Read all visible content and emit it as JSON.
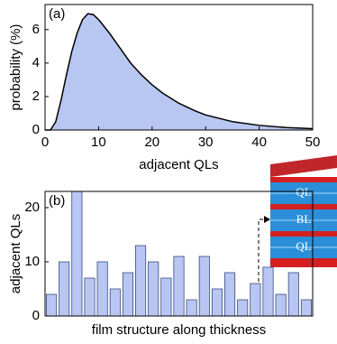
{
  "chart_data": [
    {
      "type": "area",
      "panel_label": "(a)",
      "x_label": "adjacent QLs",
      "y_label": "probability (%)",
      "x": [
        0,
        1,
        2,
        3,
        4,
        5,
        6,
        7,
        8,
        9,
        10,
        12,
        14,
        16,
        18,
        20,
        22,
        25,
        28,
        30,
        35,
        40,
        45,
        50
      ],
      "values": [
        0,
        0,
        0.5,
        1.8,
        3.3,
        4.7,
        5.8,
        6.6,
        6.95,
        6.9,
        6.6,
        5.8,
        4.9,
        4.0,
        3.3,
        2.7,
        2.2,
        1.6,
        1.15,
        0.9,
        0.5,
        0.28,
        0.15,
        0.08
      ],
      "color": "#b8c6f2",
      "xlim": [
        0,
        50
      ],
      "ylim": [
        0,
        7.5
      ],
      "xticks": [
        0,
        10,
        20,
        30,
        40,
        50
      ],
      "yticks": [
        0,
        2,
        4,
        6
      ]
    },
    {
      "type": "bar",
      "panel_label": "(b)",
      "x_label": "film structure along thickness",
      "y_label": "adjacent QLs",
      "categories": [
        null,
        null,
        null,
        null,
        null,
        null,
        null,
        null,
        null,
        null,
        null,
        null,
        null,
        null,
        null,
        null,
        null,
        null,
        null,
        null,
        null
      ],
      "values": [
        4,
        10,
        23,
        7,
        10,
        5,
        8,
        13,
        10,
        7,
        11,
        3,
        11,
        5,
        8,
        3,
        6,
        9,
        4,
        8,
        3
      ],
      "color": "#b8c6f2",
      "ylim": [
        0,
        23
      ],
      "yticks": [
        0,
        10,
        20
      ],
      "inset_labels": [
        "QL",
        "BL",
        "QL"
      ]
    }
  ]
}
